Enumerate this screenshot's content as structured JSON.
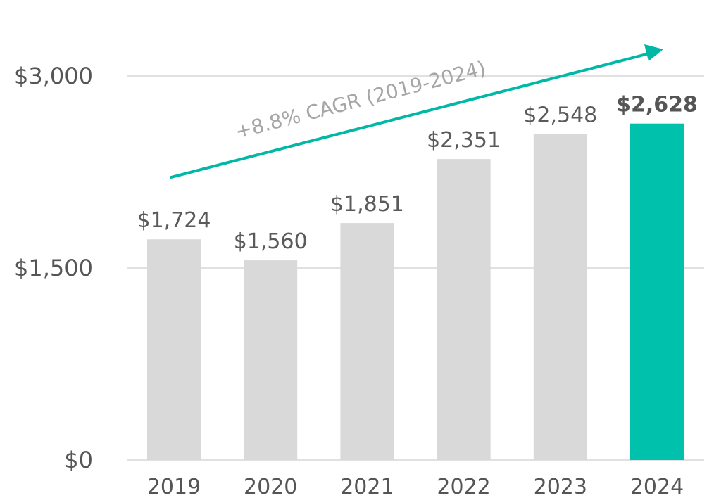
{
  "chart_data": {
    "type": "bar",
    "title": "",
    "xlabel": "",
    "ylabel": "",
    "categories": [
      "2019",
      "2020",
      "2021",
      "2022",
      "2023",
      "2024"
    ],
    "values": [
      1724,
      1560,
      1851,
      2351,
      2548,
      2628
    ],
    "data_labels": [
      "$1,724",
      "$1,560",
      "$1,851",
      "$2,351",
      "$2,548",
      "$2,628"
    ],
    "highlight_index": 5,
    "ylim": [
      0,
      3000
    ],
    "yticks": [
      0,
      1500,
      3000
    ],
    "ytick_labels": [
      "$0",
      "$1,500",
      "$3,000"
    ],
    "grid": true,
    "legend": "none",
    "annotation": {
      "text": "+8.8% CAGR (2019-2024)",
      "arrow": "trend arrow from 2019 to 2024"
    }
  },
  "colors": {
    "bar_default": "#d9d9d9",
    "bar_highlight": "#00c2ac",
    "gridline": "#e1e1e1",
    "axis_text": "#555555",
    "annotation_text": "#a6a6a6",
    "arrow": "#00b8a5"
  }
}
